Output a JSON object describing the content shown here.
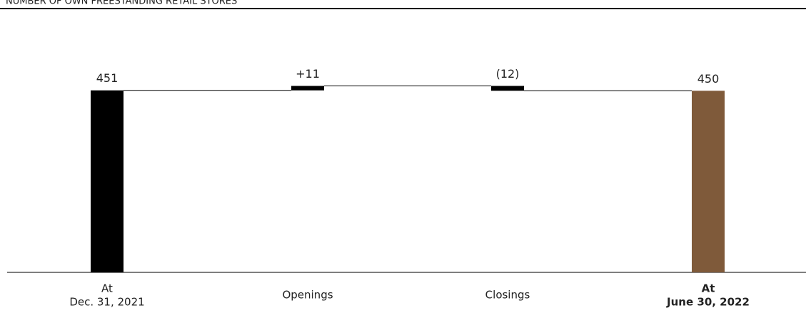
{
  "chart_data": {
    "type": "waterfall",
    "title": "NUMBER OF OWN FREESTANDING RETAIL STORES",
    "categories": [
      [
        "At",
        "Dec. 31, 2021"
      ],
      [
        "Openings"
      ],
      [
        "Closings"
      ],
      [
        "At",
        "June 30, 2022"
      ]
    ],
    "values": [
      451,
      11,
      -12,
      450
    ],
    "value_labels": [
      "451",
      "+11",
      "(12)",
      "450"
    ],
    "is_total": [
      true,
      false,
      false,
      true
    ],
    "colors": [
      "#000000",
      "#000000",
      "#000000",
      "#7f5a3a"
    ],
    "bold_categories": [
      false,
      false,
      false,
      true
    ],
    "ylim": [
      0,
      500
    ]
  }
}
